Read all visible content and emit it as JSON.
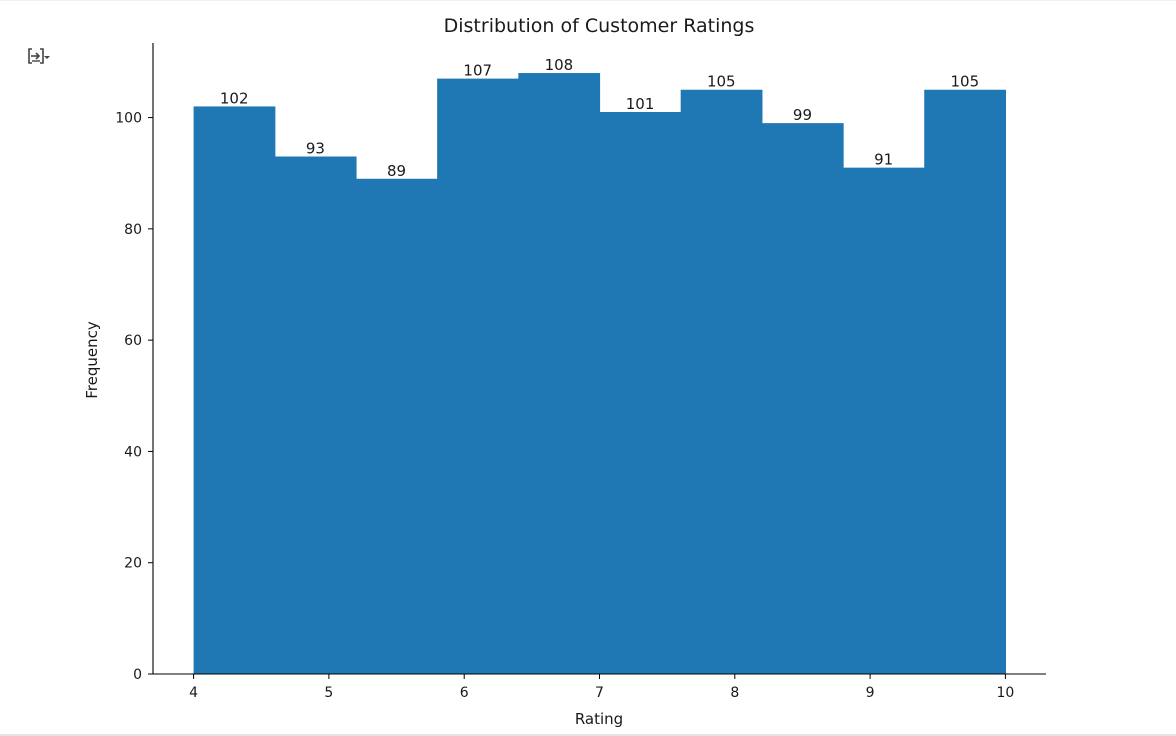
{
  "output_toggle": {
    "icon": "output-toggle-icon"
  },
  "chart_data": {
    "type": "bar",
    "title": "Distribution of Customer Ratings",
    "xlabel": "Rating",
    "ylabel": "Frequency",
    "bin_edges": [
      4.0,
      4.6,
      5.2,
      5.8,
      6.4,
      7.0,
      7.6,
      8.2,
      8.8,
      9.4,
      10.0
    ],
    "values": [
      102,
      93,
      89,
      107,
      108,
      101,
      105,
      99,
      91,
      105
    ],
    "data_labels": [
      "102",
      "93",
      "89",
      "107",
      "108",
      "101",
      "105",
      "99",
      "91",
      "105"
    ],
    "xlim": [
      3.7,
      10.3
    ],
    "ylim": [
      0,
      113.4
    ],
    "x_ticks": [
      4,
      5,
      6,
      7,
      8,
      9,
      10
    ],
    "x_tick_labels": [
      "4",
      "5",
      "6",
      "7",
      "8",
      "9",
      "10"
    ],
    "y_ticks": [
      0,
      20,
      40,
      60,
      80,
      100
    ],
    "y_tick_labels": [
      "0",
      "20",
      "40",
      "60",
      "80",
      "100"
    ],
    "bar_color": "#1f77b4",
    "grid": false
  }
}
